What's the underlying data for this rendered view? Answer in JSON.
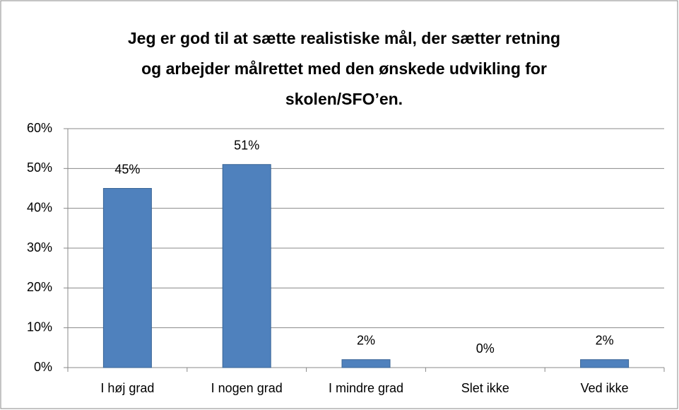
{
  "chart_data": {
    "type": "bar",
    "title": [
      "Jeg er god til at sætte realistiske mål, der sætter retning",
      "og arbejder målrettet med den ønskede udvikling for",
      "skolen/SFO’en."
    ],
    "categories": [
      "I høj grad",
      "I nogen grad",
      "I mindre grad",
      "Slet ikke",
      "Ved ikke"
    ],
    "values": [
      45,
      51,
      2,
      0,
      2
    ],
    "value_labels": [
      "45%",
      "51%",
      "2%",
      "0%",
      "2%"
    ],
    "color": "#4f81bd",
    "ylim": [
      0,
      60
    ],
    "yticks": [
      {
        "value": 0,
        "label": "0%"
      },
      {
        "value": 10,
        "label": "10%"
      },
      {
        "value": 20,
        "label": "20%"
      },
      {
        "value": 30,
        "label": "30%"
      },
      {
        "value": 40,
        "label": "40%"
      },
      {
        "value": 50,
        "label": "50%"
      },
      {
        "value": 60,
        "label": "60%"
      }
    ],
    "grid": true
  }
}
